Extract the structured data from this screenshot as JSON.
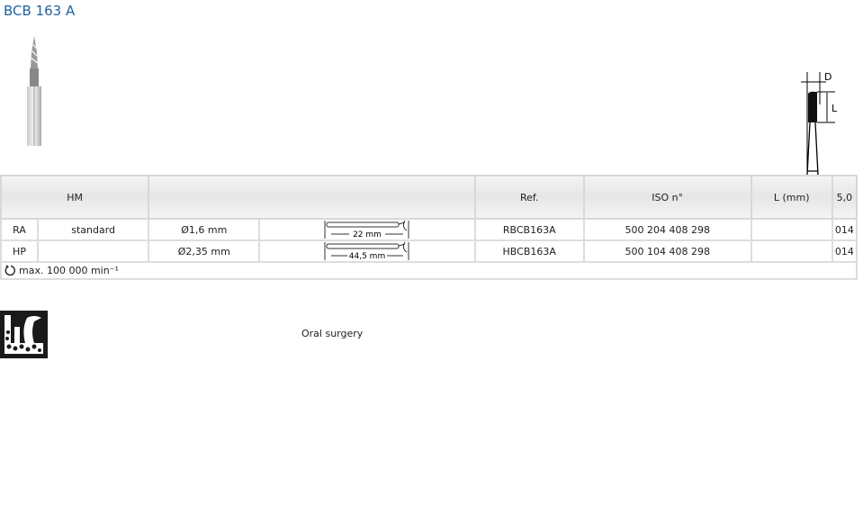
{
  "title": "BCB 163 A",
  "header": {
    "material": "HM",
    "ref": "Ref.",
    "iso": "ISO n°",
    "length": "L (mm)",
    "size": "5,0"
  },
  "rows": [
    {
      "type": "RA",
      "variant": "standard",
      "diameter": "Ø1,6 mm",
      "shank_length": "22 mm",
      "ref": "RBCB163A",
      "iso": "500 204 408 298",
      "length": "",
      "size_code": "014"
    },
    {
      "type": "HP",
      "variant": "",
      "diameter": "Ø2,35 mm",
      "shank_length": "44,5 mm",
      "ref": "HBCB163A",
      "iso": "500 104 408 298",
      "length": "",
      "size_code": "014"
    }
  ],
  "footer": {
    "speed": "max. 100 000 min⁻¹"
  },
  "diagram": {
    "d_label": "D",
    "l_label": "L"
  },
  "indication": "Oral surgery",
  "icons": {
    "speed": "rotation-icon",
    "indication": "oral-surgery-icon"
  }
}
